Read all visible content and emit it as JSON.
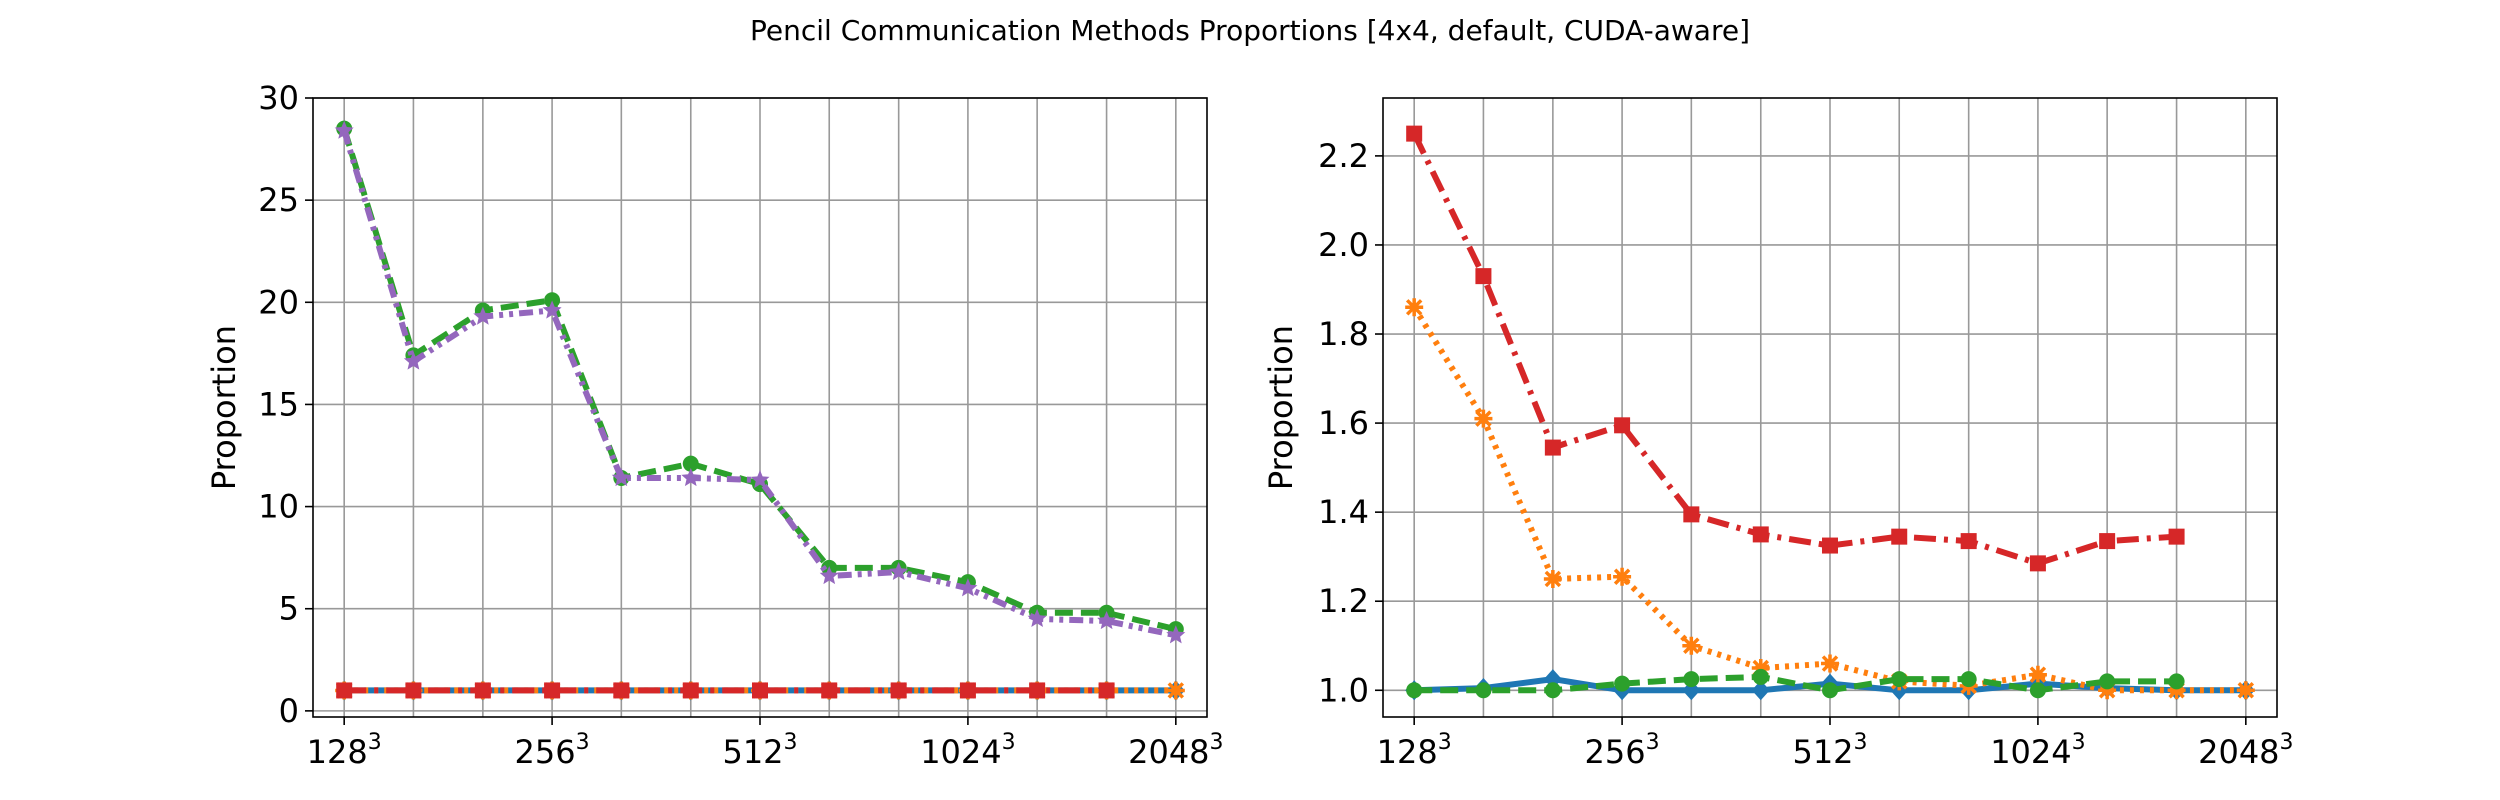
{
  "figure": {
    "title": "Pencil Communication Methods Proportions [4x4, default, CUDA-aware]"
  },
  "chart_data": [
    {
      "type": "line",
      "ylabel": "Proportion",
      "xlabel": "",
      "ylim": [
        -0.3,
        30.0
      ],
      "yticks": [
        0,
        5,
        10,
        15,
        20,
        25,
        30
      ],
      "xlim": [
        6.85,
        11.15
      ],
      "xticks": [
        7,
        8,
        9,
        10,
        11
      ],
      "xtick_labels": [
        {
          "base": "128",
          "exp": "3"
        },
        {
          "base": "256",
          "exp": "3"
        },
        {
          "base": "512",
          "exp": "3"
        },
        {
          "base": "1024",
          "exp": "3"
        },
        {
          "base": "2048",
          "exp": "3"
        }
      ],
      "x": [
        7.0,
        7.333,
        7.667,
        8.0,
        8.333,
        8.667,
        9.0,
        9.333,
        9.667,
        10.0,
        10.333,
        10.667,
        11.0
      ],
      "grid": true,
      "series": [
        {
          "color": "#1f77b4",
          "dash": "solid",
          "marker": "diamond",
          "values": [
            1.0,
            1.0,
            1.0,
            1.0,
            1.0,
            1.0,
            1.0,
            1.0,
            1.0,
            1.0,
            1.0,
            1.0,
            1.0
          ]
        },
        {
          "color": "#ff7f0e",
          "dash": "dotted",
          "marker": "x",
          "values": [
            1.0,
            1.0,
            1.0,
            1.0,
            1.0,
            1.0,
            1.0,
            1.0,
            1.0,
            1.0,
            1.0,
            1.0,
            1.0
          ]
        },
        {
          "color": "#2ca02c",
          "dash": "dashed",
          "marker": "circle",
          "values": [
            28.5,
            17.4,
            19.6,
            20.1,
            11.4,
            12.1,
            11.1,
            7.0,
            7.0,
            6.3,
            4.8,
            4.8,
            4.0
          ]
        },
        {
          "color": "#d62728",
          "dash": "dashdot",
          "marker": "square",
          "values": [
            1.0,
            1.0,
            1.0,
            1.0,
            1.0,
            1.0,
            1.0,
            1.0,
            1.0,
            1.0,
            1.0,
            1.0,
            null
          ]
        },
        {
          "color": "#9467bd",
          "dash": "dashdotdot",
          "marker": "star",
          "values": [
            28.4,
            17.1,
            19.3,
            19.6,
            11.4,
            11.4,
            11.3,
            6.6,
            6.8,
            6.0,
            4.5,
            4.4,
            3.7
          ]
        }
      ]
    },
    {
      "type": "line",
      "ylabel": "Proportion",
      "xlabel": "",
      "ylim": [
        0.94,
        2.33
      ],
      "yticks": [
        1.0,
        1.2,
        1.4,
        1.6,
        1.8,
        2.0,
        2.2
      ],
      "ytick_labels": [
        "1.0",
        "1.2",
        "1.4",
        "1.6",
        "1.8",
        "2.0",
        "2.2"
      ],
      "xlim": [
        6.85,
        11.15
      ],
      "xticks": [
        7,
        8,
        9,
        10,
        11
      ],
      "xtick_labels": [
        {
          "base": "128",
          "exp": "3"
        },
        {
          "base": "256",
          "exp": "3"
        },
        {
          "base": "512",
          "exp": "3"
        },
        {
          "base": "1024",
          "exp": "3"
        },
        {
          "base": "2048",
          "exp": "3"
        }
      ],
      "x": [
        7.0,
        7.333,
        7.667,
        8.0,
        8.333,
        8.667,
        9.0,
        9.333,
        9.667,
        10.0,
        10.333,
        10.667,
        11.0
      ],
      "grid": true,
      "series": [
        {
          "color": "#1f77b4",
          "dash": "solid",
          "marker": "diamond",
          "values": [
            1.0,
            1.005,
            1.025,
            1.0,
            1.0,
            1.0,
            1.015,
            1.0,
            1.0,
            1.015,
            1.005,
            1.0,
            1.0
          ]
        },
        {
          "color": "#ff7f0e",
          "dash": "dotted",
          "marker": "x",
          "values": [
            1.86,
            1.61,
            1.25,
            1.255,
            1.1,
            1.05,
            1.06,
            1.02,
            1.01,
            1.035,
            1.0,
            1.0,
            1.0
          ]
        },
        {
          "color": "#2ca02c",
          "dash": "dashed",
          "marker": "circle",
          "values": [
            1.0,
            1.0,
            1.0,
            1.015,
            1.025,
            1.03,
            1.0,
            1.025,
            1.025,
            1.0,
            1.02,
            1.02,
            null
          ]
        },
        {
          "color": "#d62728",
          "dash": "dashdot",
          "marker": "square",
          "values": [
            2.25,
            1.93,
            1.545,
            1.595,
            1.395,
            1.35,
            1.325,
            1.345,
            1.335,
            1.285,
            1.335,
            1.345,
            null
          ]
        }
      ]
    }
  ]
}
